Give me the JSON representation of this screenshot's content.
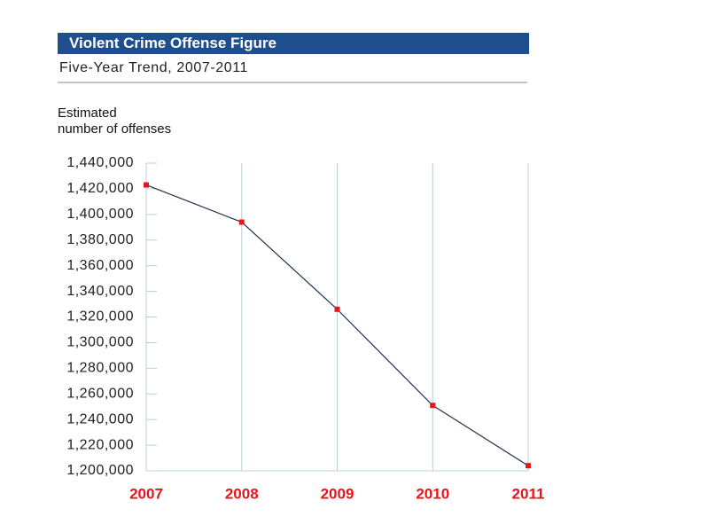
{
  "chart_data": {
    "type": "line",
    "title": "Violent Crime Offense Figure",
    "subtitle": "Five-Year Trend, 2007-2011",
    "y_label": [
      "Estimated",
      "number of offenses"
    ],
    "categories": [
      "2007",
      "2008",
      "2009",
      "2010",
      "2011"
    ],
    "series": [
      {
        "name": "Violent crime",
        "color": "#1c2f4c",
        "marker_color": "#e8141c",
        "values": [
          1423000,
          1394000,
          1326000,
          1251000,
          1204000
        ]
      }
    ],
    "ylim": [
      1200000,
      1440000
    ],
    "yticks": [
      {
        "value": 1200000,
        "label": "1,200,000"
      },
      {
        "value": 1220000,
        "label": "1,220,000"
      },
      {
        "value": 1240000,
        "label": "1,240,000"
      },
      {
        "value": 1260000,
        "label": "1,260,000"
      },
      {
        "value": 1280000,
        "label": "1,280,000"
      },
      {
        "value": 1300000,
        "label": "1,300,000"
      },
      {
        "value": 1320000,
        "label": "1,320,000"
      },
      {
        "value": 1340000,
        "label": "1,340,000"
      },
      {
        "value": 1360000,
        "label": "1,360,000"
      },
      {
        "value": 1380000,
        "label": "1,380,000"
      },
      {
        "value": 1400000,
        "label": "1,400,000"
      },
      {
        "value": 1420000,
        "label": "1,420,000"
      },
      {
        "value": 1440000,
        "label": "1,440,000"
      }
    ],
    "grid": true
  }
}
